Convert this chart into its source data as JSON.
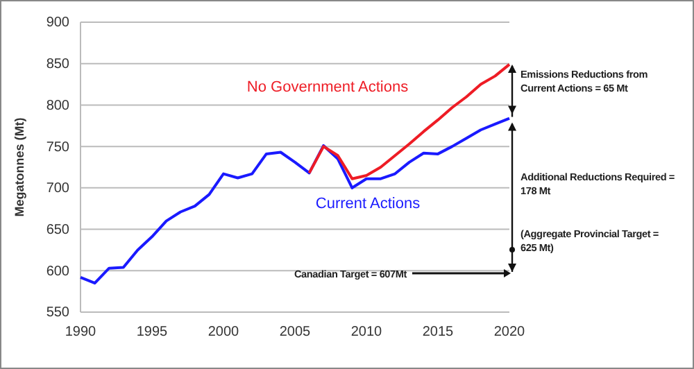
{
  "chart_data": {
    "type": "line",
    "ylabel": "Megatonnes (Mt)",
    "xlim": [
      1990,
      2020
    ],
    "xticks": [
      1990,
      1995,
      2000,
      2005,
      2010,
      2015,
      2020
    ],
    "ylim": [
      550,
      900
    ],
    "yticks": [
      550,
      600,
      650,
      700,
      750,
      800,
      850,
      900
    ],
    "grid": "y",
    "marker": "none",
    "line_style": "solid",
    "series": [
      {
        "name": "No Government Actions",
        "color": "#ee1c25",
        "x": [
          2006,
          2007,
          2008,
          2009,
          2010,
          2011,
          2012,
          2013,
          2014,
          2015,
          2016,
          2017,
          2018,
          2019,
          2020
        ],
        "values": [
          718,
          750,
          739,
          711,
          715,
          725,
          739,
          753,
          768,
          782,
          797,
          810,
          825,
          835,
          849
        ]
      },
      {
        "name": "Current Actions",
        "color": "#1a1aff",
        "x": [
          1990,
          1991,
          1992,
          1993,
          1994,
          1995,
          1996,
          1997,
          1998,
          1999,
          2000,
          2001,
          2002,
          2003,
          2004,
          2005,
          2006,
          2007,
          2008,
          2009,
          2010,
          2011,
          2012,
          2013,
          2014,
          2015,
          2016,
          2017,
          2018,
          2019,
          2020
        ],
        "values": [
          592,
          585,
          603,
          604,
          625,
          641,
          660,
          671,
          678,
          692,
          717,
          712,
          717,
          741,
          743,
          731,
          718,
          751,
          735,
          700,
          711,
          711,
          717,
          731,
          742,
          741,
          750,
          760,
          770,
          777,
          784
        ]
      }
    ],
    "annotations": [
      "Emissions Reductions from\nCurrent Actions = 65 Mt",
      "Additional Reductions Required =\n178 Mt",
      "(Aggregate Provincial Target =\n625 Mt)",
      "Canadian Target = 607Mt"
    ]
  }
}
